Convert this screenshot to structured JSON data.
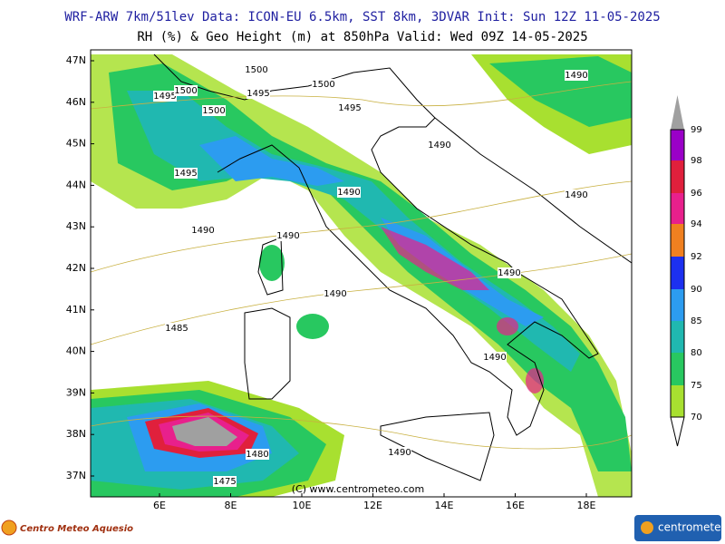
{
  "header": {
    "line1": "WRF-ARW 7km/51lev   Data: ICON-EU 6.5km, SST 8km, 3DVAR   Init: Sun 12Z 11-05-2025",
    "line2": "RH (%) & Geo Height (m) at 850hPa  Valid: Wed 09Z 14-05-2025"
  },
  "map": {
    "lat_labels": [
      "47N",
      "46N",
      "45N",
      "44N",
      "43N",
      "42N",
      "41N",
      "40N",
      "39N",
      "38N",
      "37N"
    ],
    "lon_labels": [
      "6E",
      "8E",
      "10E",
      "12E",
      "14E",
      "16E",
      "18E"
    ],
    "contour_labels": [
      "1500",
      "1495",
      "1500",
      "1495",
      "1500",
      "1495",
      "1500",
      "1490",
      "1490",
      "1495",
      "1490",
      "1490",
      "1490",
      "1490",
      "1490",
      "1490",
      "1485",
      "1490",
      "1480",
      "1490",
      "1475"
    ],
    "copyright": "(C) www.centrometeo.com"
  },
  "colorbar": {
    "levels": [
      99,
      98,
      96,
      94,
      92,
      90,
      85,
      80,
      75,
      70
    ],
    "colors": [
      "#9a00c8",
      "#e0203c",
      "#e8208c",
      "#f08020",
      "#1c30f0",
      "#2c9cf0",
      "#20b8b0",
      "#28c860",
      "#a8e030"
    ],
    "over_color": "#a0a0a0"
  },
  "footer": {
    "left_logo": "Centro Meteo Aquesio",
    "right_logo": "centrometeo"
  }
}
